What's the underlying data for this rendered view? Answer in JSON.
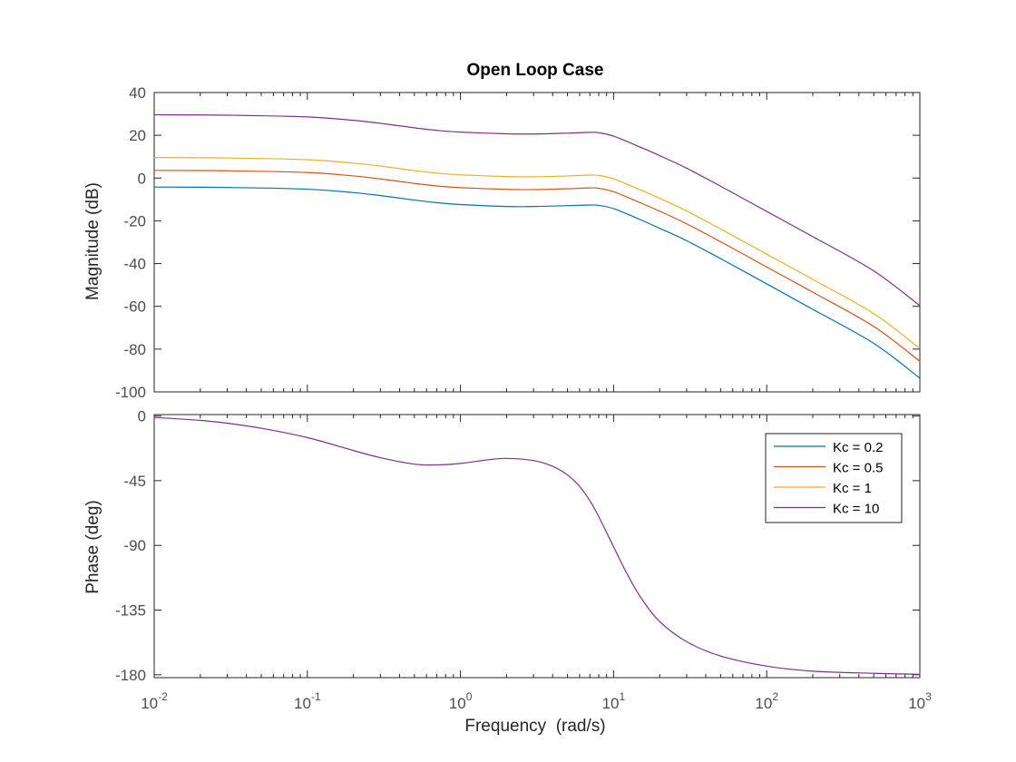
{
  "chart_data": [
    {
      "type": "line",
      "panel": "magnitude",
      "title": "Open Loop Case",
      "xlabel": "",
      "ylabel": "Magnitude (dB)",
      "xscale": "log",
      "xlim": [
        0.01,
        1000
      ],
      "ylim": [
        -100,
        40
      ],
      "yticks": [
        -100,
        -80,
        -60,
        -40,
        -20,
        0,
        20,
        40
      ],
      "ytick_labels": [
        "-100",
        "-80",
        "-60",
        "-40",
        "-20",
        "0",
        "20",
        "40"
      ],
      "grid": false,
      "series": [
        {
          "name": "Kc = 0.2",
          "color": "#0072BD",
          "x": [
            0.01,
            0.03,
            0.1,
            0.2,
            0.3,
            0.5,
            0.7,
            1,
            2,
            3,
            5,
            7,
            8,
            10,
            15,
            20,
            30,
            50,
            100,
            200,
            500,
            1000
          ],
          "y": [
            -4.2,
            -4.4,
            -5.2,
            -6.8,
            -8.2,
            -10.3,
            -11.5,
            -12.4,
            -13.3,
            -13.3,
            -12.9,
            -12.6,
            -12.8,
            -14.3,
            -19.5,
            -23.5,
            -29.3,
            -37.7,
            -49.5,
            -61.4,
            -77.3,
            -93.6
          ]
        },
        {
          "name": "Kc = 0.5",
          "color": "#D95319",
          "x": [
            0.01,
            0.03,
            0.1,
            0.2,
            0.3,
            0.5,
            0.7,
            1,
            2,
            3,
            5,
            7,
            8,
            10,
            15,
            20,
            30,
            50,
            100,
            200,
            500,
            1000
          ],
          "y": [
            3.6,
            3.4,
            2.6,
            1.0,
            -0.4,
            -2.5,
            -3.7,
            -4.5,
            -5.3,
            -5.4,
            -5.0,
            -4.6,
            -4.8,
            -6.4,
            -11.6,
            -15.5,
            -21.4,
            -29.8,
            -41.6,
            -53.4,
            -69.4,
            -85.7
          ]
        },
        {
          "name": "Kc = 1",
          "color": "#EDB120",
          "x": [
            0.01,
            0.03,
            0.1,
            0.2,
            0.3,
            0.5,
            0.7,
            1,
            2,
            3,
            5,
            7,
            8,
            10,
            15,
            20,
            30,
            50,
            100,
            200,
            500,
            1000
          ],
          "y": [
            9.6,
            9.4,
            8.6,
            7.0,
            5.6,
            3.5,
            2.3,
            1.5,
            0.7,
            0.6,
            1.0,
            1.4,
            1.2,
            -0.4,
            -5.6,
            -9.5,
            -15.4,
            -23.8,
            -35.6,
            -47.4,
            -63.4,
            -79.7
          ]
        },
        {
          "name": "Kc = 10",
          "color": "#7E2F8E",
          "x": [
            0.01,
            0.03,
            0.1,
            0.2,
            0.3,
            0.5,
            0.7,
            1,
            2,
            3,
            5,
            7,
            8,
            10,
            15,
            20,
            30,
            50,
            100,
            200,
            500,
            1000
          ],
          "y": [
            29.6,
            29.4,
            28.6,
            27.0,
            25.6,
            23.5,
            22.3,
            21.5,
            20.7,
            20.6,
            21.0,
            21.4,
            21.2,
            19.6,
            14.4,
            10.5,
            4.6,
            -3.8,
            -15.6,
            -27.4,
            -43.4,
            -59.7
          ]
        }
      ]
    },
    {
      "type": "line",
      "panel": "phase",
      "title": "",
      "xlabel": "Frequency  (rad/s)",
      "ylabel": "Phase (deg)",
      "xscale": "log",
      "xlim": [
        0.01,
        1000
      ],
      "ylim": [
        -182,
        1
      ],
      "xticks": [
        0.01,
        0.1,
        1,
        10,
        100,
        1000
      ],
      "xtick_labels": [
        {
          "base": "10",
          "exp": "-2"
        },
        {
          "base": "10",
          "exp": "-1"
        },
        {
          "base": "10",
          "exp": "0"
        },
        {
          "base": "10",
          "exp": "1"
        },
        {
          "base": "10",
          "exp": "2"
        },
        {
          "base": "10",
          "exp": "3"
        }
      ],
      "yticks": [
        0,
        -45,
        -90,
        -135,
        -180
      ],
      "ytick_labels": [
        "0",
        "-45",
        "-90",
        "-135",
        "-180"
      ],
      "grid": false,
      "legend": {
        "placement": "top-right",
        "entries": [
          {
            "label": "Kc = 0.2",
            "color": "#0072BD"
          },
          {
            "label": "Kc = 0.5",
            "color": "#D95319"
          },
          {
            "label": "Kc = 1",
            "color": "#EDB120"
          },
          {
            "label": "Kc = 10",
            "color": "#7E2F8E"
          }
        ]
      },
      "series": [
        {
          "name": "Kc = 10",
          "color": "#7E2F8E",
          "x": [
            0.01,
            0.02,
            0.03,
            0.05,
            0.1,
            0.2,
            0.3,
            0.5,
            0.7,
            1,
            1.5,
            2,
            3,
            4,
            5,
            6,
            7,
            8,
            10,
            12,
            15,
            20,
            30,
            50,
            100,
            200,
            500,
            1000
          ],
          "y": [
            -1,
            -3,
            -5,
            -8.5,
            -15,
            -24,
            -29,
            -33.5,
            -34,
            -33,
            -30.5,
            -29.5,
            -31,
            -35,
            -41,
            -49,
            -59,
            -70,
            -91,
            -108,
            -126,
            -143,
            -157,
            -167,
            -174,
            -177.5,
            -179,
            -179.7
          ]
        }
      ]
    }
  ]
}
